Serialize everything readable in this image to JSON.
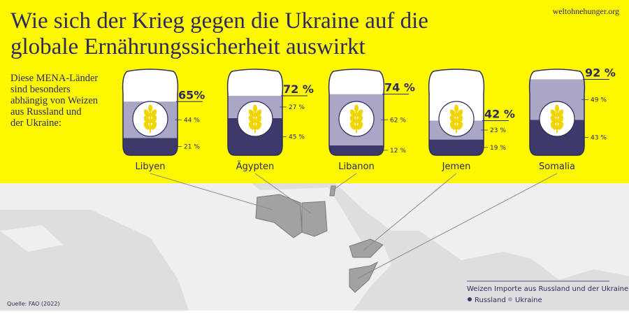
{
  "chart_data": {
    "type": "bar",
    "stacked": true,
    "title": [
      "Wie sich der Krieg gegen die Ukraine auf die",
      "globale Ernährungssicherheit auswirkt"
    ],
    "subtitle": [
      "Diese MENA-Länder",
      "sind besonders",
      "abhängig von Weizen",
      "aus Russland und",
      "der Ukraine:"
    ],
    "site": "weltohnehunger.org",
    "source": "Quelle: FAO (2022)",
    "legend_title": "Weizen Importe aus Russland und der Ukraine",
    "categories": [
      "Libyen",
      "Ägypten",
      "Libanon",
      "Jemen",
      "Somalia"
    ],
    "series": [
      {
        "name": "Russland",
        "color": "#3d3a6b",
        "values": [
          21,
          45,
          12,
          19,
          43
        ],
        "value_labels": [
          "21 %",
          "45 %",
          "12 %",
          "19 %",
          "43 %"
        ]
      },
      {
        "name": "Ukraine",
        "color": "#a9a6c6",
        "values": [
          44,
          27,
          62,
          23,
          49
        ],
        "value_labels": [
          "44 %",
          "27 %",
          "62 %",
          "23 %",
          "49 %"
        ]
      }
    ],
    "totals": [
      65,
      72,
      74,
      42,
      92
    ],
    "total_labels": [
      "65%",
      "72 %",
      "74 %",
      "42 %",
      "92 %"
    ],
    "ylim": [
      0,
      100
    ]
  }
}
